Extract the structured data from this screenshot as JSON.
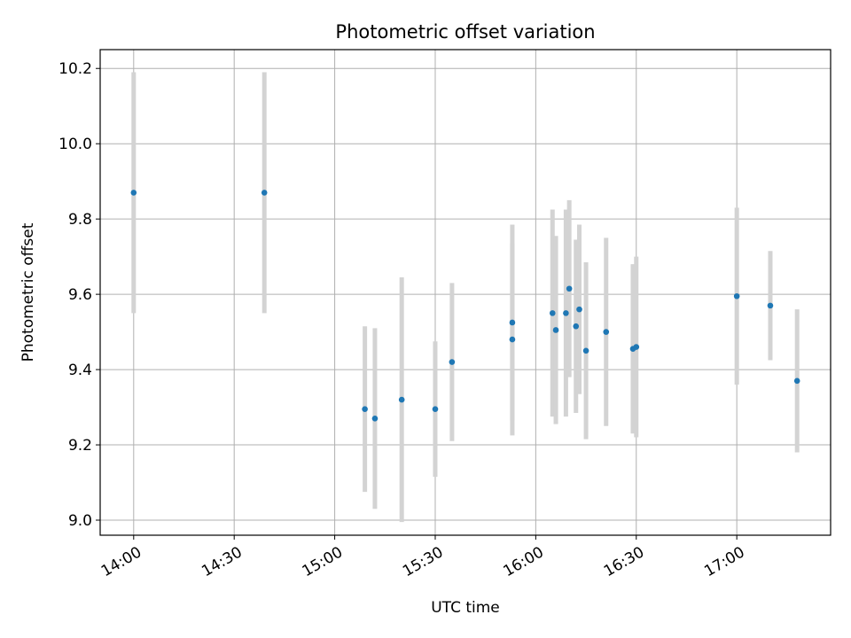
{
  "chart_data": {
    "type": "scatter",
    "title": "Photometric offset variation",
    "xlabel": "UTC time",
    "ylabel": "Photometric offset",
    "x_is_time": true,
    "xlim": [
      "13:50",
      "17:28"
    ],
    "ylim": [
      8.96,
      10.25
    ],
    "x_ticks": [
      "14:00",
      "14:30",
      "15:00",
      "15:30",
      "16:00",
      "16:30",
      "17:00"
    ],
    "y_ticks": [
      9.0,
      9.2,
      9.4,
      9.6,
      9.8,
      10.0,
      10.2
    ],
    "y_tick_labels": [
      "9.0",
      "9.2",
      "9.4",
      "9.6",
      "9.8",
      "10.0",
      "10.2"
    ],
    "grid": true,
    "colors": {
      "points": "#1f77b4",
      "errorbars": "#d3d3d3",
      "grid": "#b0b0b0"
    },
    "series": [
      {
        "points": [
          {
            "x": "14:00",
            "y": 9.87,
            "err": 0.32
          },
          {
            "x": "14:39",
            "y": 9.87,
            "err": 0.32
          },
          {
            "x": "15:09",
            "y": 9.295,
            "err": 0.22
          },
          {
            "x": "15:12",
            "y": 9.27,
            "err": 0.24
          },
          {
            "x": "15:20",
            "y": 9.32,
            "err": 0.325
          },
          {
            "x": "15:30",
            "y": 9.295,
            "err": 0.18
          },
          {
            "x": "15:35",
            "y": 9.42,
            "err": 0.21
          },
          {
            "x": "15:53",
            "y": 9.48,
            "err": 0.255
          },
          {
            "x": "15:53",
            "y": 9.525,
            "err": 0.26
          },
          {
            "x": "16:05",
            "y": 9.55,
            "err": 0.275
          },
          {
            "x": "16:06",
            "y": 9.505,
            "err": 0.25
          },
          {
            "x": "16:09",
            "y": 9.55,
            "err": 0.275
          },
          {
            "x": "16:10",
            "y": 9.615,
            "err": 0.235
          },
          {
            "x": "16:12",
            "y": 9.515,
            "err": 0.23
          },
          {
            "x": "16:13",
            "y": 9.56,
            "err": 0.225
          },
          {
            "x": "16:15",
            "y": 9.45,
            "err": 0.235
          },
          {
            "x": "16:21",
            "y": 9.5,
            "err": 0.25
          },
          {
            "x": "16:29",
            "y": 9.455,
            "err": 0.225
          },
          {
            "x": "16:30",
            "y": 9.46,
            "err": 0.24
          },
          {
            "x": "17:00",
            "y": 9.595,
            "err": 0.235
          },
          {
            "x": "17:10",
            "y": 9.57,
            "err": 0.145
          },
          {
            "x": "17:18",
            "y": 9.37,
            "err": 0.19
          }
        ]
      }
    ]
  }
}
